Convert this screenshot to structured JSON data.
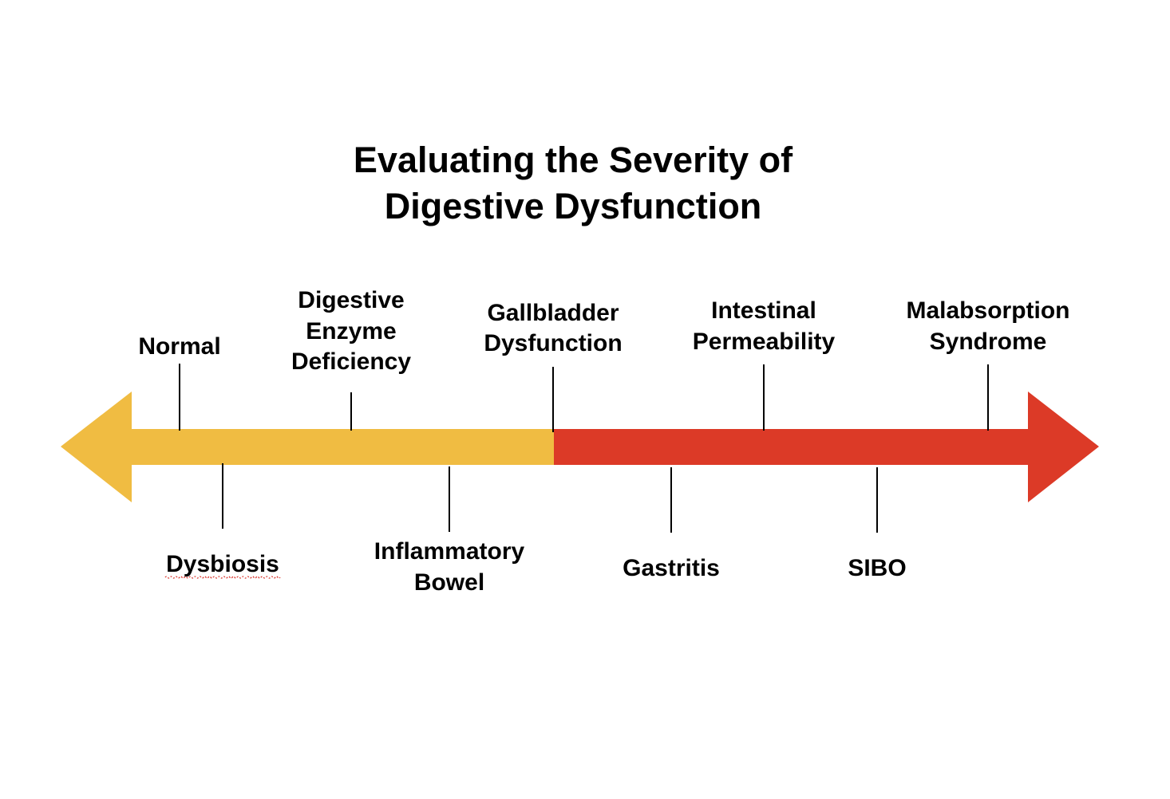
{
  "title": {
    "lines": [
      "Evaluating the Severity of",
      "Digestive Dysfunction"
    ]
  },
  "arrow": {
    "colors": {
      "mild": "#f0bc42",
      "severe": "#dc3a27"
    }
  },
  "stages": {
    "normal": {
      "lines": [
        "Normal"
      ]
    },
    "dysbiosis": {
      "lines": [
        "Dysbiosis"
      ],
      "spellcheck_underline": true
    },
    "enzyme": {
      "lines": [
        "Digestive",
        "Enzyme",
        "Deficiency"
      ]
    },
    "inflammatory": {
      "lines": [
        "Inflammatory",
        "Bowel"
      ]
    },
    "gallbladder": {
      "lines": [
        "Gallbladder",
        "Dysfunction"
      ]
    },
    "gastritis": {
      "lines": [
        "Gastritis"
      ]
    },
    "permeability": {
      "lines": [
        "Intestinal",
        "Permeability"
      ]
    },
    "sibo": {
      "lines": [
        "SIBO"
      ]
    },
    "malabsorption": {
      "lines": [
        "Malabsorption",
        "Syndrome"
      ]
    }
  }
}
